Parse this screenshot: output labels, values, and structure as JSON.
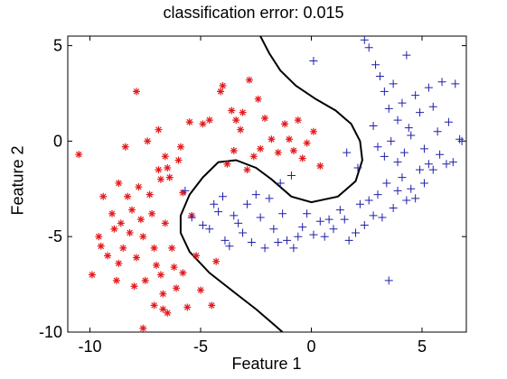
{
  "chart_data": {
    "type": "scatter",
    "title": "classification error: 0.015",
    "xlabel": "Feature 1",
    "ylabel": "Feature 2",
    "xlim": [
      -11,
      7
    ],
    "ylim": [
      -10,
      5.5
    ],
    "xticks": [
      -10,
      -5,
      0,
      5
    ],
    "yticks": [
      5,
      0,
      -5,
      -10
    ],
    "grid": false,
    "legend": "none",
    "series": [
      {
        "marker": "asterisk",
        "color": "#e41a1c",
        "points": [
          [
            -10.5,
            -0.7
          ],
          [
            -9.9,
            -7.0
          ],
          [
            -9.6,
            -5.0
          ],
          [
            -9.5,
            -5.5
          ],
          [
            -9.4,
            -2.9
          ],
          [
            -9.2,
            -6.0
          ],
          [
            -9.0,
            -3.8
          ],
          [
            -8.9,
            -4.6
          ],
          [
            -8.8,
            -7.3
          ],
          [
            -8.7,
            -2.2
          ],
          [
            -8.7,
            -6.4
          ],
          [
            -8.6,
            -4.3
          ],
          [
            -8.5,
            -5.6
          ],
          [
            -8.4,
            -0.3
          ],
          [
            -8.3,
            -2.9
          ],
          [
            -8.2,
            -4.8
          ],
          [
            -8.1,
            -3.6
          ],
          [
            -8.0,
            -7.6
          ],
          [
            -7.9,
            -6.1
          ],
          [
            -7.8,
            -2.4
          ],
          [
            -7.7,
            -4.1
          ],
          [
            -7.6,
            -5.0
          ],
          [
            -7.5,
            -7.3
          ],
          [
            -7.4,
            0.0
          ],
          [
            -7.3,
            -2.8
          ],
          [
            -7.2,
            -3.8
          ],
          [
            -7.1,
            -5.6
          ],
          [
            -7.0,
            -6.5
          ],
          [
            -6.9,
            -1.5
          ],
          [
            -6.8,
            -2.0
          ],
          [
            -6.8,
            -7.0
          ],
          [
            -6.7,
            -8.0
          ],
          [
            -6.6,
            -0.8
          ],
          [
            -6.6,
            -4.3
          ],
          [
            -6.5,
            -1.4
          ],
          [
            -6.4,
            -1.9
          ],
          [
            -6.3,
            -5.6
          ],
          [
            -6.2,
            -6.6
          ],
          [
            -6.1,
            -7.7
          ],
          [
            -6.0,
            -1.0
          ],
          [
            -5.9,
            -0.3
          ],
          [
            -5.8,
            -2.7
          ],
          [
            -5.8,
            -6.9
          ],
          [
            -5.6,
            -8.7
          ],
          [
            -5.4,
            -3.9
          ],
          [
            -5.2,
            -6.0
          ],
          [
            -5.0,
            -7.8
          ],
          [
            -4.9,
            0.9
          ],
          [
            -4.6,
            1.1
          ],
          [
            -4.5,
            -8.6
          ],
          [
            -4.3,
            -6.3
          ],
          [
            -4.0,
            2.9
          ],
          [
            -3.8,
            -1.2
          ],
          [
            -3.6,
            1.6
          ],
          [
            -3.5,
            -0.5
          ],
          [
            -3.4,
            1.1
          ],
          [
            -3.2,
            0.6
          ],
          [
            -3.1,
            1.5
          ],
          [
            -2.9,
            -1.5
          ],
          [
            -2.6,
            -0.8
          ],
          [
            -2.3,
            -0.4
          ],
          [
            -2.1,
            1.2
          ],
          [
            -1.8,
            0.1
          ],
          [
            -1.5,
            -0.6
          ],
          [
            -1.2,
            0.9
          ],
          [
            -1.0,
            0.1
          ],
          [
            -0.8,
            -0.5
          ],
          [
            -0.6,
            1.1
          ],
          [
            -0.4,
            -0.9
          ],
          [
            -0.2,
            -0.1
          ],
          [
            0.1,
            0.5
          ],
          [
            0.4,
            -1.3
          ],
          [
            -6.5,
            -9.0
          ],
          [
            -6.7,
            -8.8
          ],
          [
            -7.1,
            -8.6
          ],
          [
            -7.6,
            -9.8
          ],
          [
            -7.9,
            2.6
          ],
          [
            -4.1,
            2.6
          ],
          [
            -2.8,
            3.2
          ],
          [
            -2.4,
            2.2
          ],
          [
            -5.5,
            1.0
          ],
          [
            -6.9,
            0.6
          ]
        ]
      },
      {
        "marker": "plus",
        "color": "#1f1fa8",
        "points": [
          [
            -5.7,
            -2.6
          ],
          [
            -5.4,
            -4.0
          ],
          [
            -4.9,
            -4.4
          ],
          [
            -4.6,
            -4.6
          ],
          [
            -4.4,
            -3.3
          ],
          [
            -4.2,
            -3.7
          ],
          [
            -4.0,
            -2.9
          ],
          [
            -3.9,
            -5.2
          ],
          [
            -3.7,
            -5.5
          ],
          [
            -3.5,
            -3.9
          ],
          [
            -3.3,
            -4.3
          ],
          [
            -3.1,
            -4.8
          ],
          [
            -2.9,
            -3.3
          ],
          [
            -2.7,
            -5.3
          ],
          [
            -2.5,
            -2.8
          ],
          [
            -2.3,
            -4.0
          ],
          [
            -2.1,
            -5.6
          ],
          [
            -1.9,
            -3.0
          ],
          [
            -1.7,
            -4.6
          ],
          [
            -1.5,
            -5.3
          ],
          [
            -1.3,
            -3.8
          ],
          [
            -1.1,
            -5.2
          ],
          [
            -0.8,
            -5.6
          ],
          [
            -0.6,
            -5.0
          ],
          [
            -0.4,
            -4.5
          ],
          [
            -0.2,
            -3.8
          ],
          [
            0.1,
            -4.9
          ],
          [
            0.4,
            -4.2
          ],
          [
            0.6,
            -5.0
          ],
          [
            0.8,
            -4.1
          ],
          [
            1.0,
            -4.6
          ],
          [
            1.3,
            -3.6
          ],
          [
            1.5,
            -4.1
          ],
          [
            1.7,
            -5.2
          ],
          [
            2.0,
            -4.8
          ],
          [
            2.2,
            -3.3
          ],
          [
            2.4,
            -4.4
          ],
          [
            2.6,
            -3.1
          ],
          [
            2.8,
            -3.9
          ],
          [
            3.0,
            -2.8
          ],
          [
            3.2,
            -4.0
          ],
          [
            3.4,
            -2.2
          ],
          [
            3.5,
            -7.3
          ],
          [
            3.7,
            -3.5
          ],
          [
            3.9,
            -2.6
          ],
          [
            4.1,
            -1.9
          ],
          [
            4.3,
            -3.1
          ],
          [
            4.5,
            -2.5
          ],
          [
            4.7,
            -3.0
          ],
          [
            4.9,
            -1.5
          ],
          [
            5.1,
            -2.2
          ],
          [
            5.3,
            -1.2
          ],
          [
            5.5,
            -1.5
          ],
          [
            5.8,
            -0.7
          ],
          [
            6.1,
            -1.2
          ],
          [
            6.4,
            -1.1
          ],
          [
            6.7,
            0.1
          ],
          [
            6.8,
            0.0
          ],
          [
            2.4,
            5.3
          ],
          [
            2.6,
            4.9
          ],
          [
            2.9,
            4.0
          ],
          [
            3.1,
            3.4
          ],
          [
            3.3,
            2.6
          ],
          [
            3.5,
            1.7
          ],
          [
            3.7,
            3.0
          ],
          [
            3.9,
            1.1
          ],
          [
            4.1,
            2.0
          ],
          [
            4.3,
            4.5
          ],
          [
            4.5,
            0.3
          ],
          [
            4.7,
            2.4
          ],
          [
            4.9,
            1.5
          ],
          [
            5.1,
            -0.4
          ],
          [
            5.3,
            2.8
          ],
          [
            5.5,
            1.8
          ],
          [
            5.7,
            0.5
          ],
          [
            5.9,
            3.1
          ],
          [
            6.2,
            1.0
          ],
          [
            6.5,
            3.0
          ],
          [
            2.8,
            0.8
          ],
          [
            3.0,
            -0.3
          ],
          [
            3.3,
            -0.8
          ],
          [
            3.6,
            0.0
          ],
          [
            3.9,
            -1.1
          ],
          [
            4.2,
            -0.6
          ],
          [
            4.4,
            0.7
          ],
          [
            0.1,
            4.2
          ],
          [
            1.6,
            -0.6
          ],
          [
            2.1,
            -1.4
          ],
          [
            -1.4,
            -2.2
          ],
          [
            -0.9,
            -1.8
          ]
        ]
      }
    ],
    "boundary": [
      [
        -2.3,
        5.5
      ],
      [
        -1.9,
        4.6
      ],
      [
        -1.4,
        3.7
      ],
      [
        -0.7,
        2.9
      ],
      [
        0.2,
        2.2
      ],
      [
        1.1,
        1.6
      ],
      [
        1.8,
        0.9
      ],
      [
        2.2,
        0.0
      ],
      [
        2.3,
        -1.0
      ],
      [
        2.0,
        -2.1
      ],
      [
        1.2,
        -2.9
      ],
      [
        0.0,
        -3.2
      ],
      [
        -0.9,
        -2.9
      ],
      [
        -1.8,
        -2.0
      ],
      [
        -2.5,
        -1.4
      ],
      [
        -3.4,
        -1.0
      ],
      [
        -4.2,
        -1.1
      ],
      [
        -4.9,
        -1.9
      ],
      [
        -5.5,
        -2.8
      ],
      [
        -5.9,
        -3.9
      ],
      [
        -5.9,
        -4.8
      ],
      [
        -5.5,
        -5.8
      ],
      [
        -4.6,
        -6.9
      ],
      [
        -3.5,
        -7.9
      ],
      [
        -2.5,
        -8.8
      ],
      [
        -1.7,
        -9.6
      ],
      [
        -1.3,
        -10.0
      ]
    ]
  }
}
